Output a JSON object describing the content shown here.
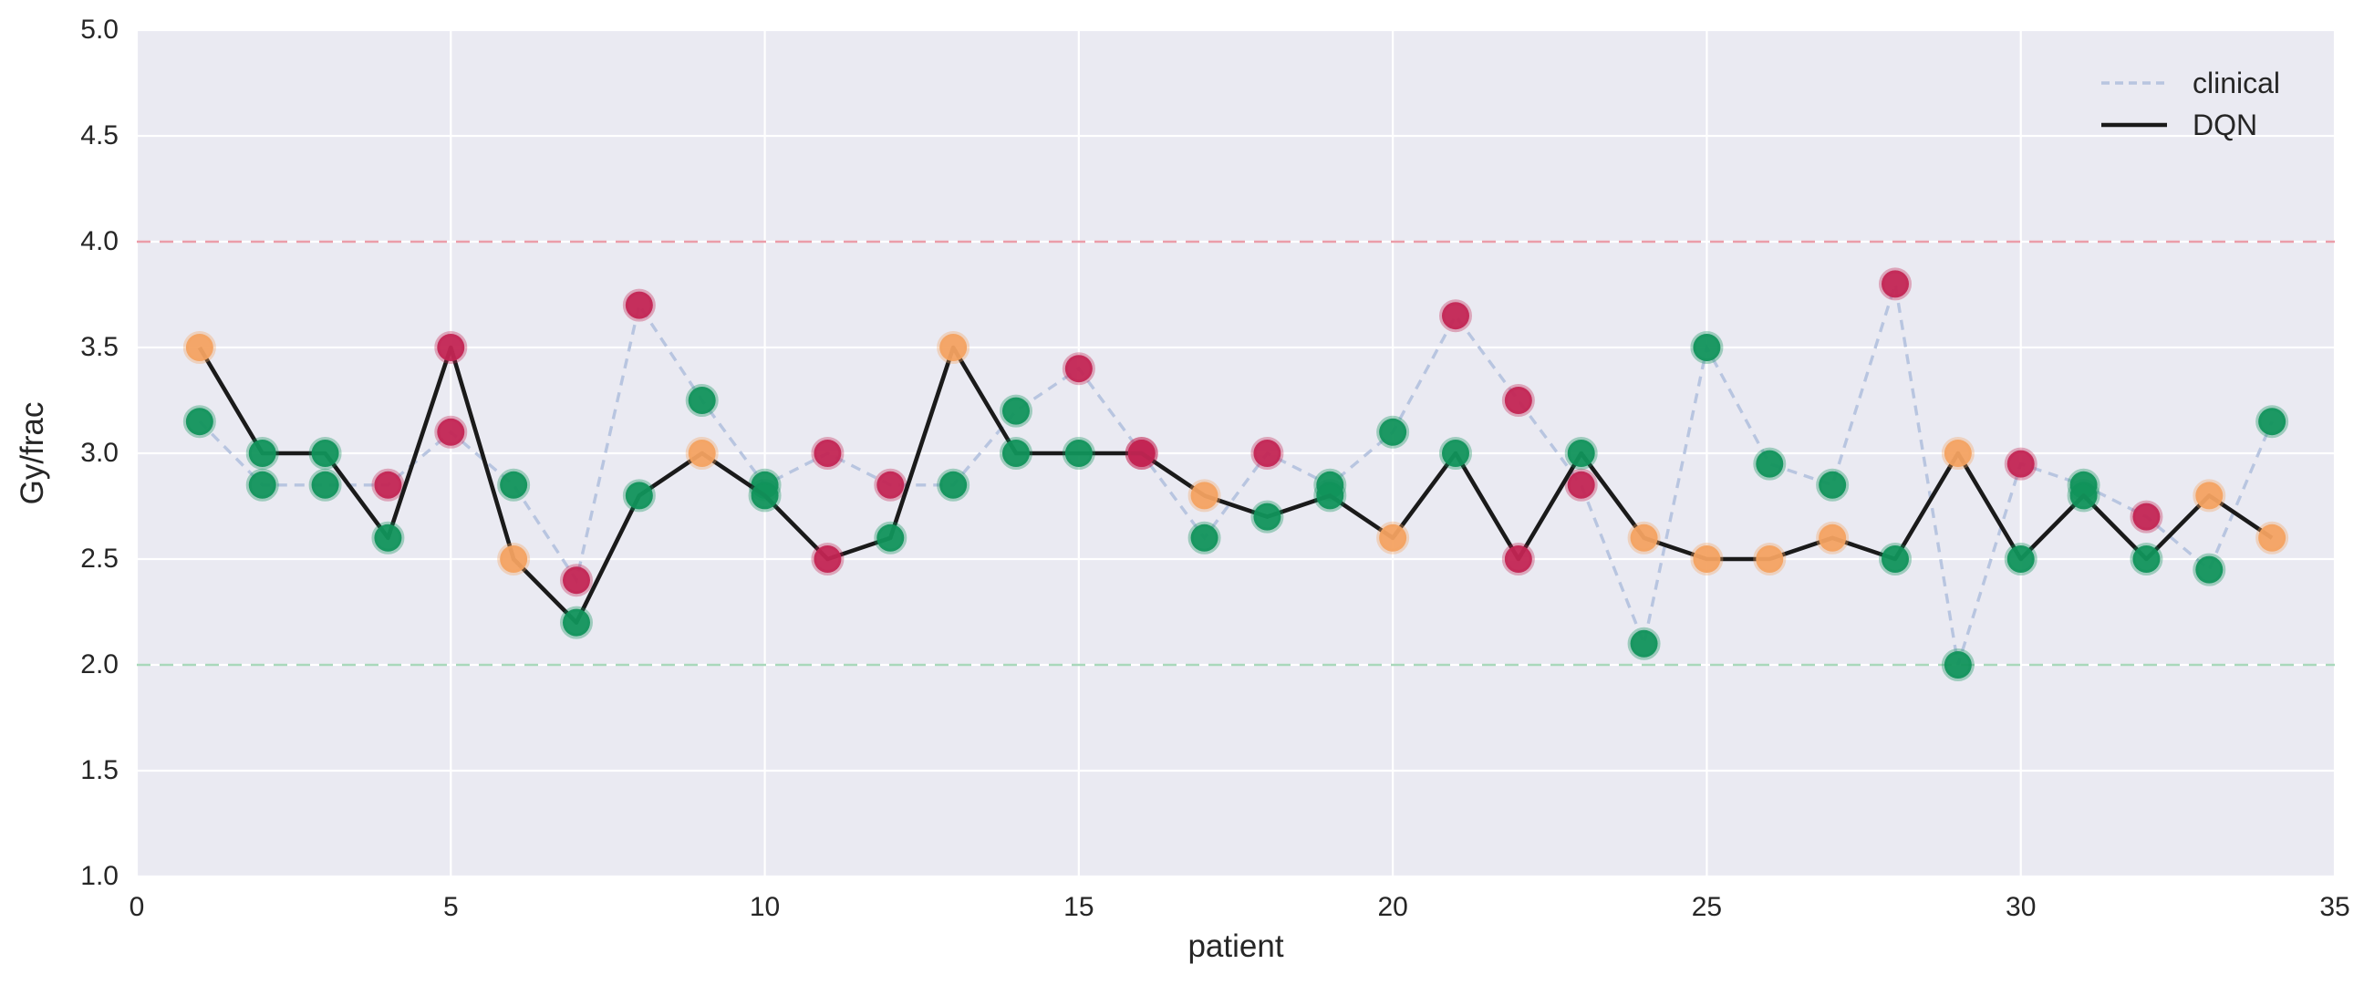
{
  "figure": {
    "background": "#ffffff",
    "plot_background": "#eaeaf2",
    "grid_color": "#ffffff"
  },
  "axes": {
    "xlabel": "patient",
    "ylabel": "Gy/frac",
    "xlim": [
      0,
      35
    ],
    "ylim": [
      1.0,
      5.0
    ],
    "xticks": [
      0,
      5,
      10,
      15,
      20,
      25,
      30,
      35
    ],
    "yticks": [
      1.0,
      1.5,
      2.0,
      2.5,
      3.0,
      3.5,
      4.0,
      4.5,
      5.0
    ],
    "ytick_labels": [
      "1.0",
      "1.5",
      "2.0",
      "2.5",
      "3.0",
      "3.5",
      "4.0",
      "4.5",
      "5.0"
    ],
    "xtick_labels": [
      "0",
      "5",
      "10",
      "15",
      "20",
      "25",
      "30",
      "35"
    ]
  },
  "legend": {
    "items": [
      {
        "label": "clinical",
        "style": "dashed",
        "color": "#b8c5e0"
      },
      {
        "label": "DQN",
        "style": "solid",
        "color": "#1a1a1a"
      }
    ]
  },
  "chart_data": {
    "type": "line",
    "x": [
      1,
      2,
      3,
      4,
      5,
      6,
      7,
      8,
      9,
      10,
      11,
      12,
      13,
      14,
      15,
      16,
      17,
      18,
      19,
      20,
      21,
      22,
      23,
      24,
      25,
      26,
      27,
      28,
      29,
      30,
      31,
      32,
      33,
      34
    ],
    "series": [
      {
        "name": "clinical",
        "line_color": "#b8c5e0",
        "line_style": "dashed",
        "values": [
          3.15,
          2.85,
          2.85,
          2.85,
          3.1,
          2.85,
          2.4,
          3.7,
          3.25,
          2.85,
          3.0,
          2.85,
          2.85,
          3.2,
          3.4,
          3.0,
          2.6,
          3.0,
          2.85,
          3.1,
          3.65,
          3.25,
          2.85,
          2.1,
          3.5,
          2.95,
          2.85,
          3.8,
          2.0,
          2.95,
          2.85,
          2.7,
          2.45,
          3.15
        ],
        "point_colors": [
          "green",
          "green",
          "green",
          "red",
          "red",
          "green",
          "red",
          "red",
          "green",
          "green",
          "red",
          "red",
          "green",
          "green",
          "red",
          "red",
          "green",
          "red",
          "green",
          "green",
          "red",
          "red",
          "red",
          "green",
          "green",
          "green",
          "green",
          "red",
          "green",
          "red",
          "green",
          "red",
          "green",
          "green"
        ]
      },
      {
        "name": "DQN",
        "line_color": "#1a1a1a",
        "line_style": "solid",
        "values": [
          3.5,
          3.0,
          3.0,
          2.6,
          3.5,
          2.5,
          2.2,
          2.8,
          3.0,
          2.8,
          2.5,
          2.6,
          3.5,
          3.0,
          3.0,
          3.0,
          2.8,
          2.7,
          2.8,
          2.6,
          3.0,
          2.5,
          3.0,
          2.6,
          2.5,
          2.5,
          2.6,
          2.5,
          3.0,
          2.5,
          2.8,
          2.5,
          2.8,
          2.6
        ],
        "point_colors": [
          "orange",
          "green",
          "green",
          "green",
          "red",
          "orange",
          "green",
          "green",
          "orange",
          "green",
          "red",
          "green",
          "orange",
          "green",
          "green",
          "red",
          "orange",
          "green",
          "green",
          "orange",
          "green",
          "red",
          "green",
          "orange",
          "orange",
          "orange",
          "orange",
          "green",
          "orange",
          "green",
          "green",
          "green",
          "orange",
          "orange"
        ]
      }
    ],
    "point_color_map": {
      "green": "#11935b",
      "red": "#c32553",
      "orange": "#f4a261"
    },
    "hlines": [
      {
        "y": 4.0,
        "color": "#eb9da9",
        "style": "dashed"
      },
      {
        "y": 2.0,
        "color": "#a9d8bb",
        "style": "dashed"
      }
    ],
    "grid": true,
    "legend_position": "upper right"
  }
}
